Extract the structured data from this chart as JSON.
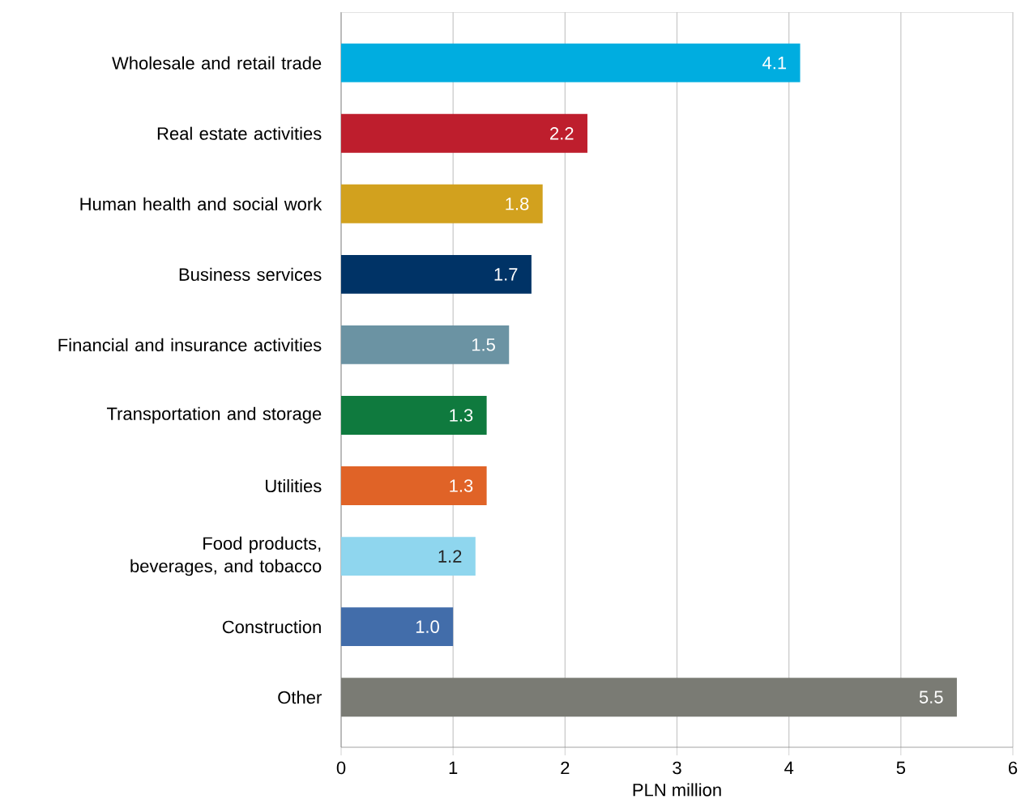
{
  "chart_data": {
    "type": "bar",
    "orientation": "horizontal",
    "xlabel": "PLN million",
    "categories": [
      "Wholesale and retail trade",
      "Real estate activities",
      "Human health and social work",
      "Business services",
      "Financial and insurance activities",
      "Transportation and storage",
      "Utilities",
      "Food products, beverages, and tobacco",
      "Construction",
      "Other"
    ],
    "values": [
      4.1,
      2.2,
      1.8,
      1.7,
      1.5,
      1.3,
      1.3,
      1.2,
      1.0,
      5.5
    ],
    "colors": [
      "#00ade0",
      "#be1e2d",
      "#d2a11e",
      "#003366",
      "#6b93a3",
      "#0f7a3e",
      "#e06327",
      "#8fd6ee",
      "#426daa",
      "#7a7b74"
    ],
    "xlim": [
      0,
      6
    ],
    "xticks": [
      0,
      1,
      2,
      3,
      4,
      5,
      6
    ],
    "value_labels": [
      "4.1",
      "2.2",
      "1.8",
      "1.7",
      "1.5",
      "1.3",
      "1.3",
      "1.2",
      "1.0",
      "5.5"
    ],
    "grid": "x"
  }
}
